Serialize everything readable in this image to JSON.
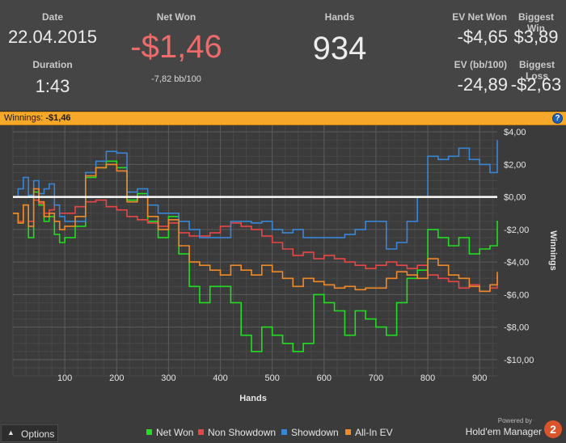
{
  "stats": {
    "date_label": "Date",
    "date_value": "22.04.2015",
    "duration_label": "Duration",
    "duration_value": "1:43",
    "net_won_label": "Net Won",
    "net_won_value": "-$1,46",
    "net_won_sub": "-7,82 bb/100",
    "hands_label": "Hands",
    "hands_value": "934",
    "ev_net_won_label": "EV Net Won",
    "ev_net_won_value": "-$4,65",
    "biggest_win_label": "Biggest Win",
    "biggest_win_value": "$3,89",
    "ev_bb_label": "EV (bb/100)",
    "ev_bb_value": "-24,89",
    "biggest_loss_label": "Biggest Loss",
    "biggest_loss_value": "-$2,63"
  },
  "winnings_bar": {
    "label": "Winnings:",
    "value": "-$1,46",
    "help_glyph": "?"
  },
  "options": {
    "label": "Options",
    "icon": "chevron-up-icon"
  },
  "branding": {
    "powered_by": "Powered by",
    "name": "Hold'em Manager",
    "logo_text": "2"
  },
  "colors": {
    "net_won": "#22dd22",
    "non_showdown": "#e64646",
    "showdown": "#3a86d6",
    "all_in_ev": "#f08a28",
    "zero_line": "#ffffff",
    "net_won_value_text": "#ee6b6b"
  },
  "chart_data": {
    "type": "line",
    "xlabel": "Hands",
    "ylabel": "Winnings",
    "xlim": [
      0,
      934
    ],
    "ylim": [
      -11,
      5
    ],
    "x_ticks": [
      100,
      200,
      300,
      400,
      500,
      600,
      700,
      800,
      900
    ],
    "y_ticks": [
      {
        "value": 4,
        "label": "$4,00"
      },
      {
        "value": 2,
        "label": "$2,00"
      },
      {
        "value": 0,
        "label": "$0,00"
      },
      {
        "value": -2,
        "label": "-$2,00"
      },
      {
        "value": -4,
        "label": "-$4,00"
      },
      {
        "value": -6,
        "label": "-$6,00"
      },
      {
        "value": -8,
        "label": "-$8,00"
      },
      {
        "value": -10,
        "label": "-$10,00"
      }
    ],
    "grid": true,
    "legend_position": "bottom",
    "series": [
      {
        "name": "Net Won",
        "color": "#22dd22",
        "x": [
          0,
          10,
          20,
          30,
          40,
          50,
          60,
          70,
          80,
          90,
          100,
          120,
          140,
          160,
          180,
          200,
          220,
          240,
          260,
          280,
          300,
          320,
          340,
          360,
          380,
          400,
          420,
          440,
          460,
          480,
          500,
          520,
          540,
          560,
          580,
          600,
          620,
          640,
          660,
          680,
          700,
          720,
          740,
          760,
          780,
          800,
          820,
          840,
          860,
          880,
          900,
          920,
          934
        ],
        "y": [
          -1,
          -1.6,
          -0.5,
          -2.5,
          0.3,
          -0.5,
          -1.5,
          -1.2,
          -2.3,
          -2.8,
          -2.5,
          -1.8,
          1.2,
          1.8,
          2.2,
          1.8,
          -0.2,
          0.2,
          -1.5,
          -2.5,
          -1.2,
          -3.5,
          -5.5,
          -6.5,
          -5.5,
          -5.5,
          -6.5,
          -8.5,
          -9.5,
          -8,
          -8.5,
          -9,
          -9.5,
          -9,
          -6,
          -6.5,
          -7,
          -8.5,
          -7,
          -7.5,
          -8,
          -8.5,
          -6.5,
          -5,
          -4.5,
          -2,
          -2.5,
          -3,
          -2.5,
          -3.5,
          -3.2,
          -3,
          -1.46
        ]
      },
      {
        "name": "Non Showdown",
        "color": "#e64646",
        "x": [
          0,
          10,
          20,
          30,
          40,
          50,
          60,
          70,
          80,
          90,
          100,
          120,
          140,
          160,
          180,
          200,
          220,
          240,
          260,
          280,
          300,
          320,
          340,
          360,
          380,
          400,
          420,
          440,
          460,
          480,
          500,
          520,
          540,
          560,
          580,
          600,
          620,
          640,
          660,
          680,
          700,
          720,
          740,
          760,
          780,
          800,
          820,
          840,
          860,
          880,
          900,
          920,
          934
        ],
        "y": [
          -1,
          -1.5,
          -0.5,
          -1.5,
          -0.2,
          -0.4,
          -1,
          -0.8,
          -0.5,
          -1,
          -1,
          -0.6,
          -0.3,
          -0.2,
          -0.6,
          -0.8,
          -1.2,
          -1.4,
          -1.6,
          -1.8,
          -1.6,
          -2.2,
          -2.4,
          -2.4,
          -2.2,
          -1.8,
          -1.6,
          -1.8,
          -2,
          -2.4,
          -2.8,
          -3.2,
          -3.6,
          -3.4,
          -3.8,
          -3.6,
          -3.8,
          -4,
          -4.2,
          -4.4,
          -4.2,
          -4,
          -4.2,
          -4.4,
          -4.2,
          -4.8,
          -5,
          -5.2,
          -5.6,
          -5.4,
          -5.8,
          -5.6,
          -4.8
        ]
      },
      {
        "name": "Showdown",
        "color": "#3a86d6",
        "x": [
          0,
          10,
          20,
          30,
          40,
          50,
          60,
          70,
          80,
          90,
          100,
          120,
          140,
          160,
          180,
          200,
          220,
          240,
          260,
          280,
          300,
          320,
          340,
          360,
          380,
          400,
          420,
          440,
          460,
          480,
          500,
          520,
          540,
          560,
          580,
          600,
          620,
          640,
          660,
          680,
          700,
          720,
          740,
          760,
          780,
          800,
          820,
          840,
          860,
          880,
          900,
          920,
          934
        ],
        "y": [
          0,
          0.5,
          1.2,
          0.1,
          1,
          0.2,
          0.5,
          0.8,
          -0.5,
          -1.2,
          -1.5,
          -1.5,
          1.5,
          2.2,
          2.8,
          2.7,
          0.3,
          0.5,
          -0.5,
          -1,
          -1,
          -1.5,
          -2,
          -2.5,
          -2.5,
          -2.5,
          -1.5,
          -1.5,
          -1.6,
          -1.5,
          -2,
          -2.2,
          -2,
          -2.5,
          -2.5,
          -2.5,
          -2.5,
          -2.3,
          -2,
          -1.5,
          -1.5,
          -3.2,
          -2.8,
          -1.5,
          0,
          2.5,
          2.3,
          2.5,
          3,
          2.3,
          2,
          1.5,
          3.5
        ]
      },
      {
        "name": "All-In EV",
        "color": "#f08a28",
        "x": [
          0,
          10,
          20,
          30,
          40,
          50,
          60,
          70,
          80,
          90,
          100,
          120,
          140,
          160,
          180,
          200,
          220,
          240,
          260,
          280,
          300,
          320,
          340,
          360,
          380,
          400,
          420,
          440,
          460,
          480,
          500,
          520,
          540,
          560,
          580,
          600,
          620,
          640,
          660,
          680,
          700,
          720,
          740,
          760,
          780,
          800,
          820,
          840,
          860,
          880,
          900,
          920,
          934
        ],
        "y": [
          -1,
          -1.6,
          -0.5,
          -1.8,
          0.5,
          -0.3,
          -1.2,
          -1,
          -1.5,
          -2,
          -1.8,
          -1.2,
          1.3,
          1.8,
          2,
          1.6,
          -0.3,
          0,
          -1.2,
          -2,
          -1.4,
          -3,
          -4,
          -4.2,
          -4.5,
          -4.8,
          -4.2,
          -4.5,
          -4.8,
          -4.2,
          -4.6,
          -5,
          -5.5,
          -5,
          -5.2,
          -5.4,
          -5.6,
          -5.5,
          -5.7,
          -5.6,
          -5.6,
          -5,
          -4.6,
          -4.8,
          -5,
          -3.8,
          -4.2,
          -4.8,
          -5,
          -5.5,
          -5.8,
          -5.4,
          -4.6
        ]
      },
      {
        "name": "",
        "color": "#ffffff",
        "x": [
          0,
          934
        ],
        "y": [
          0,
          0
        ]
      }
    ]
  }
}
